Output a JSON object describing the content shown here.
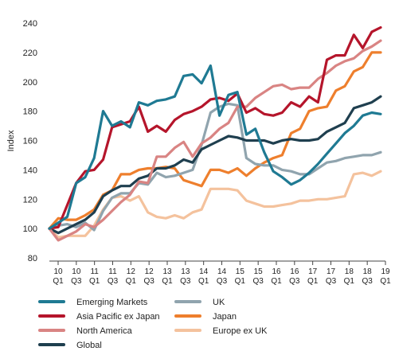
{
  "chart_data": {
    "type": "line",
    "ylabel": "Index",
    "ylim": [
      80,
      240
    ],
    "yticks": [
      80,
      100,
      120,
      140,
      160,
      180,
      200,
      220,
      240
    ],
    "x_tick_labels": [
      {
        "year": "10",
        "q": "Q1"
      },
      {
        "year": "10",
        "q": "Q3"
      },
      {
        "year": "11",
        "q": "Q1"
      },
      {
        "year": "11",
        "q": "Q3"
      },
      {
        "year": "12",
        "q": "Q1"
      },
      {
        "year": "12",
        "q": "Q3"
      },
      {
        "year": "13",
        "q": "Q1"
      },
      {
        "year": "13",
        "q": "Q3"
      },
      {
        "year": "14",
        "q": "Q1"
      },
      {
        "year": "14",
        "q": "Q3"
      },
      {
        "year": "15",
        "q": "Q1"
      },
      {
        "year": "15",
        "q": "Q3"
      },
      {
        "year": "16",
        "q": "Q1"
      },
      {
        "year": "16",
        "q": "Q3"
      },
      {
        "year": "17",
        "q": "Q1"
      },
      {
        "year": "17",
        "q": "Q3"
      },
      {
        "year": "18",
        "q": "Q1"
      },
      {
        "year": "18",
        "q": "Q3"
      },
      {
        "year": "19",
        "q": "Q1"
      }
    ],
    "grid": false,
    "legend_position": "bottom",
    "series": [
      {
        "name": "Emerging Markets",
        "color": "#1f7a93",
        "values": [
          100,
          104,
          108,
          131,
          135,
          148,
          180,
          170,
          173,
          169,
          186,
          184,
          187,
          188,
          190,
          204,
          205,
          199,
          211,
          177,
          191,
          193,
          164,
          168,
          152,
          139,
          135,
          130,
          133,
          138,
          144,
          151,
          158,
          165,
          170,
          177,
          179,
          178
        ]
      },
      {
        "name": "Asia Pacific ex Japan",
        "color": "#b5152b",
        "values": [
          100,
          101,
          116,
          131,
          139,
          140,
          147,
          169,
          171,
          173,
          183,
          166,
          170,
          166,
          174,
          178,
          180,
          183,
          188,
          189,
          187,
          192,
          179,
          182,
          178,
          177,
          179,
          186,
          183,
          190,
          186,
          215,
          218,
          218,
          232,
          223,
          234,
          237
        ]
      },
      {
        "name": "North America",
        "color": "#d98483",
        "values": [
          100,
          92,
          95,
          98,
          103,
          101,
          106,
          112,
          118,
          123,
          132,
          131,
          149,
          149,
          155,
          159,
          149,
          158,
          162,
          168,
          172,
          183,
          183,
          189,
          193,
          197,
          198,
          195,
          196,
          196,
          202,
          206,
          211,
          214,
          216,
          221,
          224,
          228
        ]
      },
      {
        "name": "Global",
        "color": "#1f3f4f",
        "values": [
          100,
          97,
          100,
          103,
          106,
          111,
          122,
          126,
          129,
          129,
          134,
          136,
          141,
          141,
          143,
          147,
          145,
          154,
          157,
          160,
          163,
          162,
          160,
          160,
          160,
          158,
          160,
          161,
          160,
          160,
          161,
          166,
          169,
          172,
          182,
          184,
          186,
          190
        ]
      },
      {
        "name": "UK",
        "color": "#90a4ae",
        "values": [
          100,
          102,
          103,
          101,
          104,
          99,
          112,
          121,
          124,
          124,
          131,
          130,
          138,
          135,
          136,
          138,
          140,
          157,
          179,
          183,
          185,
          184,
          148,
          144,
          143,
          143,
          140,
          139,
          137,
          137,
          141,
          145,
          146,
          148,
          149,
          150,
          150,
          152
        ]
      },
      {
        "name": "Japan",
        "color": "#ee7f2d",
        "values": [
          100,
          107,
          106,
          106,
          109,
          113,
          123,
          126,
          137,
          137,
          140,
          141,
          141,
          142,
          141,
          133,
          131,
          129,
          140,
          140,
          138,
          141,
          136,
          141,
          145,
          148,
          150,
          165,
          168,
          180,
          182,
          183,
          194,
          197,
          207,
          210,
          220,
          220
        ]
      },
      {
        "name": "Europe ex UK",
        "color": "#f4c29d",
        "values": [
          100,
          94,
          95,
          95,
          95,
          102,
          113,
          121,
          122,
          119,
          122,
          111,
          108,
          107,
          109,
          107,
          111,
          113,
          127,
          127,
          127,
          126,
          119,
          117,
          115,
          115,
          116,
          117,
          119,
          119,
          120,
          120,
          121,
          122,
          137,
          138,
          136,
          139
        ]
      }
    ],
    "legend_columns": [
      [
        "Emerging Markets",
        "Asia Pacific ex Japan",
        "North America",
        "Global"
      ],
      [
        "UK",
        "Japan",
        "Europe ex UK"
      ]
    ]
  }
}
